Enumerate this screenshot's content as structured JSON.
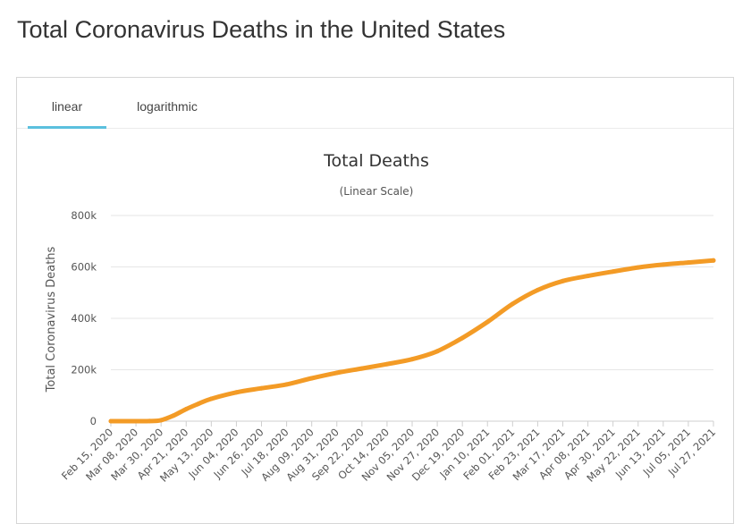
{
  "page": {
    "title": "Total Coronavirus Deaths in the United States"
  },
  "tabs": [
    {
      "label": "linear",
      "active": true
    },
    {
      "label": "logarithmic",
      "active": false
    }
  ],
  "colors": {
    "series": "#f39b26",
    "tab_underline": "#5bc0de",
    "grid": "#e6e6e6"
  },
  "chart_data": {
    "type": "line",
    "title": "Total Deaths",
    "subtitle": "(Linear Scale)",
    "ylabel": "Total Coronavirus Deaths",
    "xlabel": "",
    "ylim": [
      0,
      800000
    ],
    "yticks": [
      0,
      200000,
      400000,
      600000,
      800000
    ],
    "ytick_labels": [
      "0",
      "200k",
      "400k",
      "600k",
      "800k"
    ],
    "grid": "horizontal",
    "legend": "none",
    "x_tick_labels": [
      "Feb 15, 2020",
      "Mar 08, 2020",
      "Mar 30, 2020",
      "Apr 21, 2020",
      "May 13, 2020",
      "Jun 04, 2020",
      "Jun 26, 2020",
      "Jul 18, 2020",
      "Aug 09, 2020",
      "Aug 31, 2020",
      "Sep 22, 2020",
      "Oct 14, 2020",
      "Nov 05, 2020",
      "Nov 27, 2020",
      "Dec 19, 2020",
      "Jan 10, 2021",
      "Feb 01, 2021",
      "Feb 23, 2021",
      "Mar 17, 2021",
      "Apr 08, 2021",
      "Apr 30, 2021",
      "May 22, 2021",
      "Jun 13, 2021",
      "Jul 05, 2021",
      "Jul 27, 2021"
    ],
    "series": [
      {
        "x": [
          "Feb 15, 2020",
          "Mar 08, 2020",
          "Mar 20, 2020",
          "Mar 30, 2020",
          "Apr 10, 2020",
          "Apr 21, 2020",
          "May 02, 2020",
          "May 13, 2020",
          "Jun 04, 2020",
          "Jun 26, 2020",
          "Jul 18, 2020",
          "Aug 09, 2020",
          "Aug 31, 2020",
          "Sep 22, 2020",
          "Oct 14, 2020",
          "Nov 05, 2020",
          "Nov 27, 2020",
          "Dec 19, 2020",
          "Jan 10, 2021",
          "Feb 01, 2021",
          "Feb 23, 2021",
          "Mar 17, 2021",
          "Apr 08, 2021",
          "Apr 30, 2021",
          "May 22, 2021",
          "Jun 13, 2021",
          "Jul 05, 2021",
          "Jul 27, 2021"
        ],
        "values": [
          0,
          20,
          200,
          4000,
          22000,
          47000,
          68000,
          87000,
          112000,
          128000,
          143000,
          167000,
          188000,
          205000,
          222000,
          241000,
          272000,
          324000,
          386000,
          456000,
          510000,
          545000,
          565000,
          582000,
          598000,
          609000,
          617000,
          625000
        ]
      }
    ]
  }
}
